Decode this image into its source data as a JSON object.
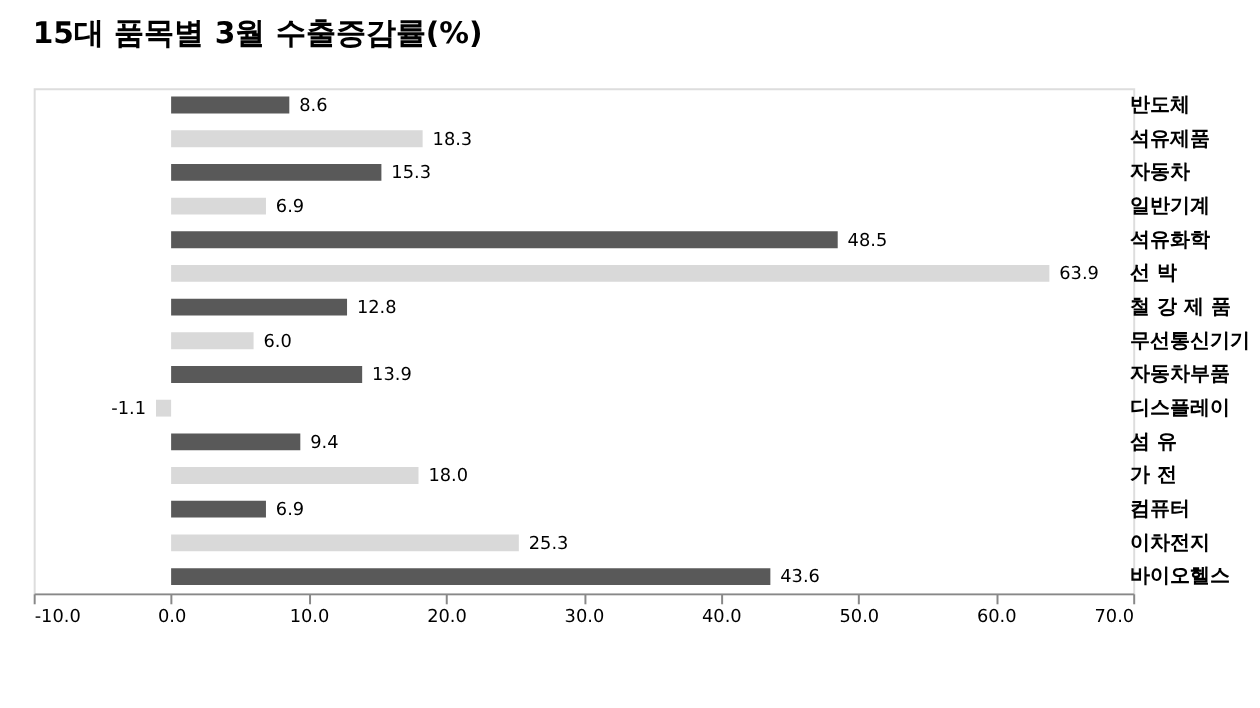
{
  "chart_data": {
    "type": "bar",
    "orientation": "horizontal",
    "title": "15대  품목별  3월  수출증감률(%)",
    "categories": [
      "반도체",
      "석유제품",
      "자동차",
      "일반기계",
      "석유화학",
      "선  박",
      "철  강  제  품",
      "무선통신기기",
      "자동차부품",
      "디스플레이",
      "섬  유",
      "가  전",
      "컴퓨터",
      "이차전지",
      "바이오헬스"
    ],
    "values": [
      8.6,
      18.3,
      15.3,
      6.9,
      48.5,
      63.9,
      12.8,
      6.0,
      13.9,
      -1.1,
      9.4,
      18.0,
      6.9,
      25.3,
      43.6
    ],
    "value_labels": [
      "8.6",
      "18.3",
      "15.3",
      "6.9",
      "48.5",
      "63.9",
      "12.8",
      "6.0",
      "13.9",
      "-1.1",
      "9.4",
      "18.0",
      "6.9",
      "25.3",
      "43.6"
    ],
    "colors": [
      "#595959",
      "#d9d9d9",
      "#595959",
      "#d9d9d9",
      "#595959",
      "#d9d9d9",
      "#595959",
      "#d9d9d9",
      "#595959",
      "#d9d9d9",
      "#595959",
      "#d9d9d9",
      "#595959",
      "#d9d9d9",
      "#595959"
    ],
    "xlim": [
      -10,
      70
    ],
    "xticks": [
      {
        "value": -10,
        "label": "-10.0"
      },
      {
        "value": 0,
        "label": "0.0"
      },
      {
        "value": 10,
        "label": "10.0"
      },
      {
        "value": 20,
        "label": "20.0"
      },
      {
        "value": 30,
        "label": "30.0"
      },
      {
        "value": 40,
        "label": "40.0"
      },
      {
        "value": 50,
        "label": "50.0"
      },
      {
        "value": 60,
        "label": "60.0"
      },
      {
        "value": 70,
        "label": "70.0"
      }
    ],
    "grid": false
  }
}
